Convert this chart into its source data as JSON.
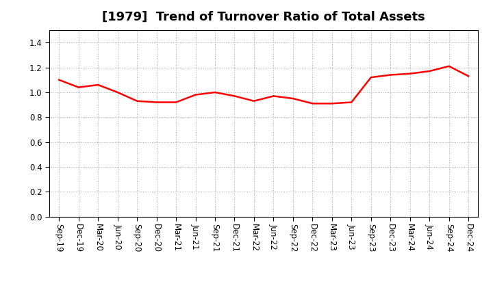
{
  "title": "[1979]  Trend of Turnover Ratio of Total Assets",
  "x_labels": [
    "Sep-19",
    "Dec-19",
    "Mar-20",
    "Jun-20",
    "Sep-20",
    "Dec-20",
    "Mar-21",
    "Jun-21",
    "Sep-21",
    "Dec-21",
    "Mar-22",
    "Jun-22",
    "Sep-22",
    "Dec-22",
    "Mar-23",
    "Jun-23",
    "Sep-23",
    "Dec-23",
    "Mar-24",
    "Jun-24",
    "Sep-24",
    "Dec-24"
  ],
  "y_values": [
    1.1,
    1.04,
    1.06,
    1.0,
    0.93,
    0.92,
    0.92,
    0.98,
    1.0,
    0.97,
    0.93,
    0.97,
    0.95,
    0.91,
    0.91,
    0.92,
    1.12,
    1.14,
    1.15,
    1.17,
    1.21,
    1.13
  ],
  "line_color": "#FF0000",
  "line_width": 1.8,
  "ylim": [
    0.0,
    1.5
  ],
  "yticks": [
    0.0,
    0.2,
    0.4,
    0.6,
    0.8,
    1.0,
    1.2,
    1.4
  ],
  "grid_color": "#aaaaaa",
  "grid_style": "dotted",
  "title_fontsize": 13,
  "tick_fontsize": 8.5,
  "background_color": "#ffffff"
}
